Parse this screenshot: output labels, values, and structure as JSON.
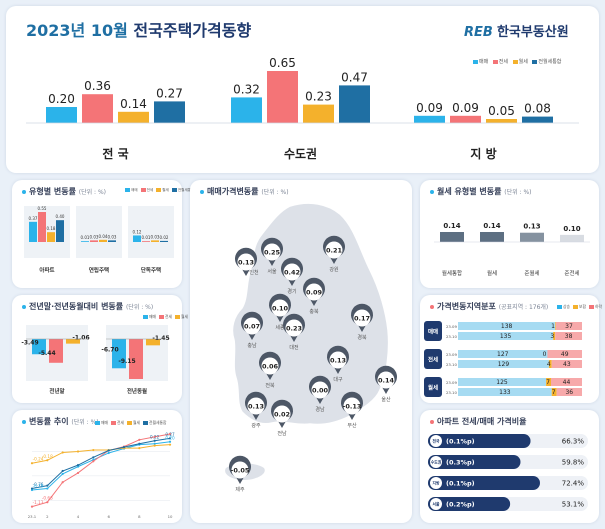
{
  "header": {
    "year": "2023년",
    "month": "10월",
    "title": "전국주택가격동향",
    "logo_text": "한국부동산원",
    "logo_mark": "REB"
  },
  "colors": {
    "sale": "#2bb3ea",
    "jeonse": "#f47477",
    "wolse": "#f4b12c",
    "total": "#1f6fa3",
    "navy": "#1f3a6e"
  },
  "legend": [
    "매매",
    "전세",
    "월세",
    "전월세통합"
  ],
  "top_chart": {
    "categories": [
      "전 국",
      "수도권",
      "지 방"
    ],
    "series": [
      {
        "name": "매매",
        "values": [
          0.2,
          0.32,
          0.09
        ]
      },
      {
        "name": "전세",
        "values": [
          0.36,
          0.65,
          0.09
        ]
      },
      {
        "name": "월세",
        "values": [
          0.14,
          0.23,
          0.05
        ]
      },
      {
        "name": "전월세통합",
        "values": [
          0.27,
          0.47,
          0.08
        ]
      }
    ]
  },
  "type_change": {
    "title": "유형별 변동률",
    "unit": "(단위 : %)",
    "categories": [
      "아파트",
      "연립주택",
      "단독주택"
    ],
    "series": [
      {
        "name": "매매",
        "values": [
          0.37,
          0.01,
          0.12
        ]
      },
      {
        "name": "전세",
        "values": [
          0.55,
          0.03,
          0.01
        ]
      },
      {
        "name": "월세",
        "values": [
          0.18,
          0.04,
          0.03
        ]
      },
      {
        "name": "전월세통합",
        "values": [
          0.4,
          0.03,
          0.02
        ]
      }
    ]
  },
  "ytd": {
    "title": "전년말·전년동월대비 변동률",
    "unit": "(단위 : %)",
    "legend": [
      "매매",
      "전세",
      "월세"
    ],
    "categories": [
      "전년말",
      "전년동월"
    ],
    "series": [
      {
        "name": "매매",
        "values": [
          -3.49,
          -6.7
        ]
      },
      {
        "name": "전세",
        "values": [
          -5.44,
          -9.15
        ]
      },
      {
        "name": "월세",
        "values": [
          -1.06,
          -1.45
        ]
      }
    ]
  },
  "trend": {
    "title": "변동률 추이",
    "unit": "(단위 : %)",
    "x": [
      "23.1",
      "2",
      "3",
      "4",
      "5",
      "6",
      "7",
      "8",
      "9",
      "10"
    ],
    "series": [
      {
        "name": "매매",
        "values": [
          -0.79,
          -0.76,
          -0.46,
          -0.31,
          -0.17,
          -0.03,
          0.06,
          0.14,
          0.16,
          0.2
        ]
      },
      {
        "name": "전세",
        "values": [
          -1.13,
          -1.04,
          -0.63,
          -0.44,
          -0.2,
          0.02,
          0.1,
          0.24,
          0.3,
          0.36
        ]
      },
      {
        "name": "월세",
        "values": [
          -0.24,
          -0.18,
          -0.02,
          0.0,
          0.03,
          0.03,
          0.07,
          0.07,
          0.12,
          0.14
        ]
      },
      {
        "name": "전월세통합",
        "values": [
          -0.76,
          -0.7,
          -0.4,
          -0.28,
          -0.12,
          0.02,
          0.09,
          0.16,
          0.22,
          0.27
        ]
      }
    ],
    "labels": [
      {
        "t": "-0.24",
        "s": 2,
        "i": 0
      },
      {
        "t": "-0.18",
        "s": 2,
        "i": 1
      },
      {
        "t": "-0.76",
        "s": 3,
        "i": 0
      },
      {
        "t": "-0.79",
        "s": 0,
        "i": 0
      },
      {
        "t": "-1.13",
        "s": 1,
        "i": 0
      },
      {
        "t": "-0.63",
        "s": 1,
        "i": 1
      },
      {
        "t": "0.22",
        "s": 3,
        "i": 8
      },
      {
        "t": "0.27",
        "s": 3,
        "i": 9
      },
      {
        "t": "0.20",
        "s": 0,
        "i": 9
      }
    ],
    "ylim": [
      -1.2,
      0.4
    ]
  },
  "map": {
    "title": "매매가격변동률",
    "unit": "(단위 : %)",
    "regions": [
      {
        "name": "인천",
        "value": "0.13"
      },
      {
        "name": "서울",
        "value": "0.25"
      },
      {
        "name": "경기",
        "value": "0.42"
      },
      {
        "name": "강원",
        "value": "0.21"
      },
      {
        "name": "충북",
        "value": "0.09"
      },
      {
        "name": "세종",
        "value": "0.10"
      },
      {
        "name": "충남",
        "value": "0.07"
      },
      {
        "name": "대전",
        "value": "0.23"
      },
      {
        "name": "경북",
        "value": "0.17"
      },
      {
        "name": "대구",
        "value": "0.13"
      },
      {
        "name": "전북",
        "value": "0.06"
      },
      {
        "name": "울산",
        "value": "0.14"
      },
      {
        "name": "경남",
        "value": "0.00"
      },
      {
        "name": "부산",
        "value": "-0.13"
      },
      {
        "name": "광주",
        "value": "0.13"
      },
      {
        "name": "전남",
        "value": "0.02"
      },
      {
        "name": "제주",
        "value": "-0.05"
      }
    ]
  },
  "wolse_type": {
    "title": "월세 유형별 변동률",
    "unit": "(단위 : %)",
    "categories": [
      "월세통합",
      "월세",
      "준월세",
      "준전세"
    ],
    "values": [
      0.14,
      0.14,
      0.13,
      0.1
    ],
    "labels": [
      "0.14",
      "0.14",
      "0.13",
      "0.10"
    ]
  },
  "distribution": {
    "title": "가격변동지역분포",
    "unit": "(공표지역 : 176개)",
    "legend": [
      "상승",
      "보합",
      "하락"
    ],
    "groups": [
      {
        "name": "매매",
        "rows": [
          {
            "period": "23.09",
            "up": 138,
            "flat": 1,
            "down": 37
          },
          {
            "period": "23.10",
            "up": 135,
            "flat": 3,
            "down": 38
          }
        ]
      },
      {
        "name": "전세",
        "rows": [
          {
            "period": "23.09",
            "up": 127,
            "flat": 0,
            "down": 49
          },
          {
            "period": "23.10",
            "up": 129,
            "flat": 4,
            "down": 43
          }
        ]
      },
      {
        "name": "월세",
        "rows": [
          {
            "period": "23.09",
            "up": 125,
            "flat": 7,
            "down": 44
          },
          {
            "period": "23.10",
            "up": 133,
            "flat": 7,
            "down": 36
          }
        ]
      }
    ]
  },
  "ratio": {
    "title": "아파트 전세/매매 가격비율",
    "rows": [
      {
        "region": "전국",
        "change": "(0.1%p)",
        "value": "66.3%",
        "pct": 66.3
      },
      {
        "region": "수도권",
        "change": "(0.3%p)",
        "value": "59.8%",
        "pct": 59.8
      },
      {
        "region": "지방",
        "change": "(0.1%p)",
        "value": "72.4%",
        "pct": 72.4
      },
      {
        "region": "서울",
        "change": "(0.2%p)",
        "value": "53.1%",
        "pct": 53.1
      }
    ]
  }
}
